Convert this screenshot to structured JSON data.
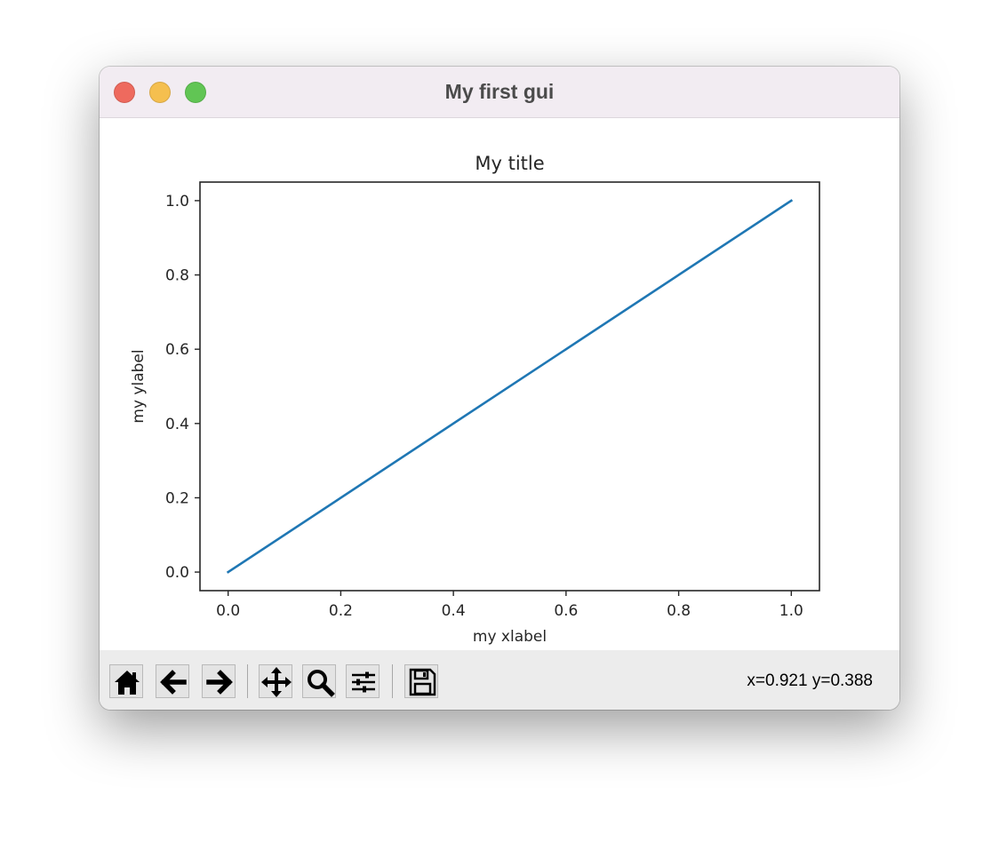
{
  "window": {
    "title": "My first gui",
    "controls": {
      "close_color": "#ee6a5e",
      "minimize_color": "#f5bf4f",
      "maximize_color": "#61c554"
    }
  },
  "chart_data": {
    "type": "line",
    "title": "My title",
    "xlabel": "my xlabel",
    "ylabel": "my ylabel",
    "xlim": [
      -0.05,
      1.05
    ],
    "ylim": [
      -0.05,
      1.05
    ],
    "x_ticks": [
      0.0,
      0.2,
      0.4,
      0.6,
      0.8,
      1.0
    ],
    "y_ticks": [
      0.0,
      0.2,
      0.4,
      0.6,
      0.8,
      1.0
    ],
    "x_tick_labels": [
      "0.0",
      "0.2",
      "0.4",
      "0.6",
      "0.8",
      "1.0"
    ],
    "y_tick_labels": [
      "0.0",
      "0.2",
      "0.4",
      "0.6",
      "0.8",
      "1.0"
    ],
    "grid": false,
    "series": [
      {
        "x": [
          0,
          1
        ],
        "y": [
          0,
          1
        ],
        "color": "#1f77b4"
      }
    ]
  },
  "toolbar": {
    "buttons": [
      {
        "name": "home-button",
        "icon": "home-icon"
      },
      {
        "name": "back-button",
        "icon": "arrow-left-icon"
      },
      {
        "name": "forward-button",
        "icon": "arrow-right-icon"
      },
      {
        "name": "pan-button",
        "icon": "move-icon"
      },
      {
        "name": "zoom-button",
        "icon": "magnifier-icon"
      },
      {
        "name": "configure-subplots-button",
        "icon": "sliders-icon"
      },
      {
        "name": "save-button",
        "icon": "floppy-disk-icon"
      }
    ],
    "coordinates": "x=0.921 y=0.388"
  }
}
